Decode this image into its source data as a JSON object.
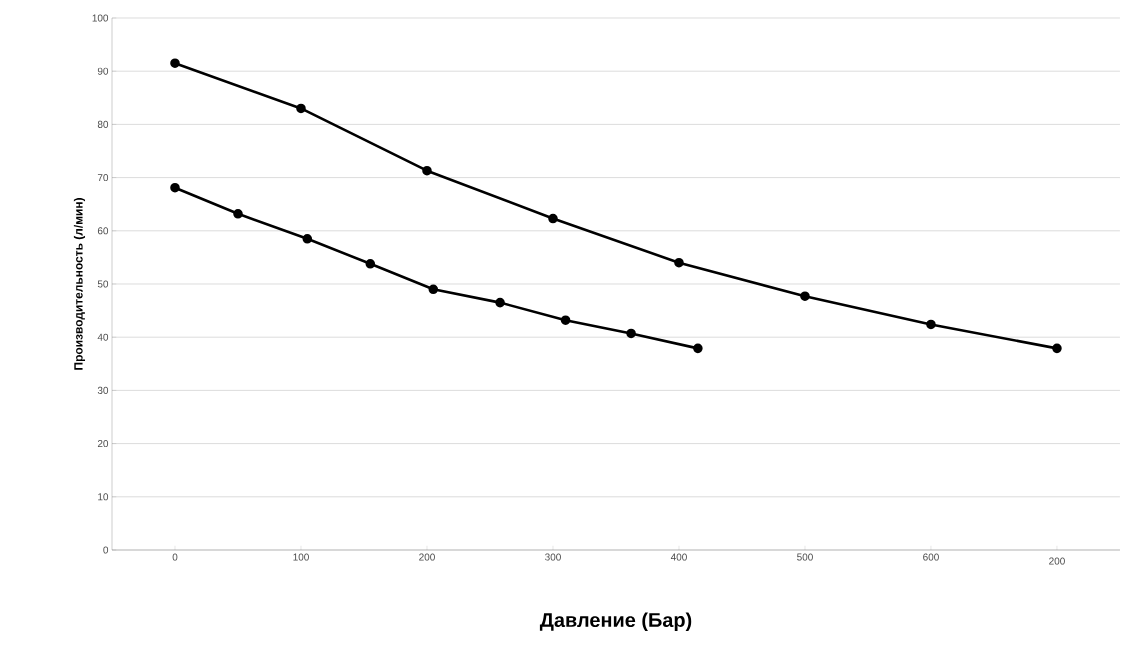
{
  "chart_data": {
    "type": "line",
    "xlabel": "Давление (Бар)",
    "ylabel": "Производительность (л/мин)",
    "series": [
      {
        "color": "#000000",
        "x": [
          0,
          100,
          200,
          300,
          400,
          500,
          600,
          700
        ],
        "values": [
          91.5,
          83,
          71.3,
          62.3,
          54,
          47.7,
          42.4,
          37.9
        ]
      },
      {
        "color": "#000000",
        "x": [
          0,
          50,
          105,
          155,
          205,
          258,
          310,
          362,
          415
        ],
        "values": [
          68.1,
          63.2,
          58.5,
          53.8,
          49,
          46.5,
          43.2,
          40.7,
          37.9
        ]
      }
    ],
    "xlim": [
      -50,
      750
    ],
    "ylim": [
      0,
      100
    ],
    "xticks": [
      0,
      100,
      200,
      300,
      400,
      500,
      600,
      {
        "value": 700,
        "label": null
      }
    ],
    "annotations": [
      "200"
    ],
    "yticks": [
      0,
      10,
      20,
      30,
      40,
      50,
      60,
      70,
      80,
      90,
      100
    ],
    "grid": "y",
    "marker": "circle",
    "line_style": "solid"
  }
}
